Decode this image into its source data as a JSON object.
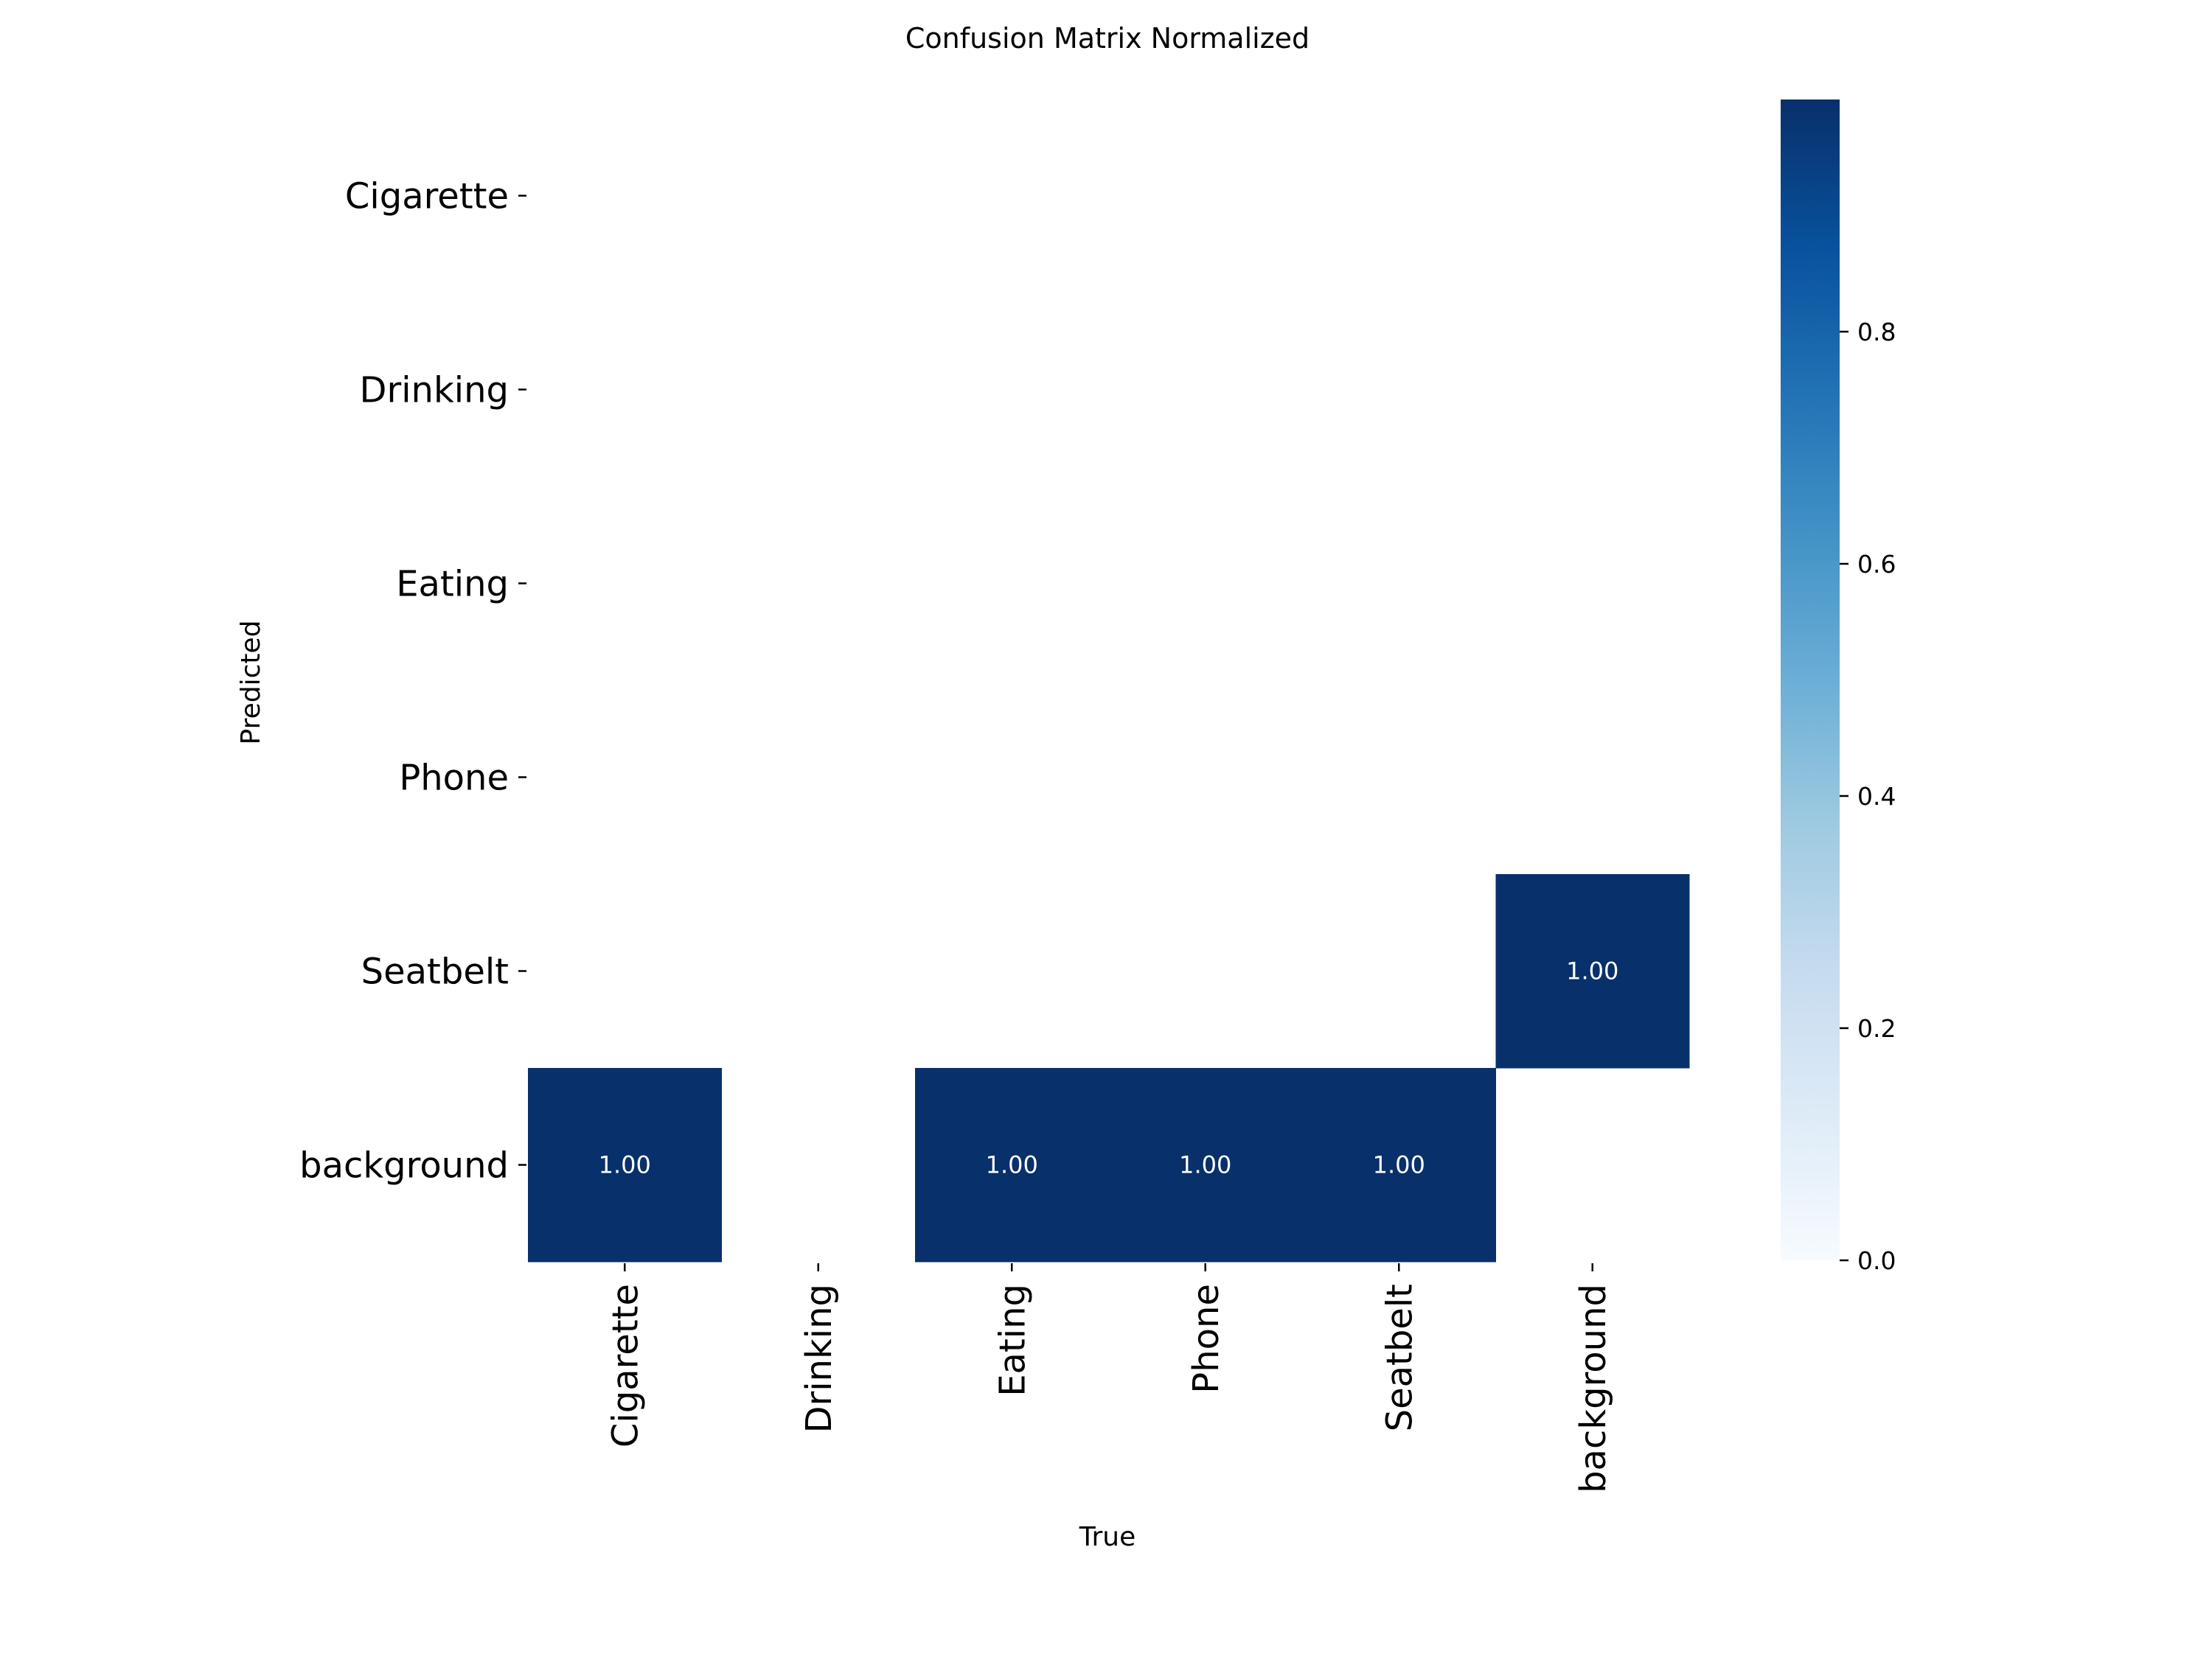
{
  "chart_data": {
    "type": "heatmap",
    "title": "Confusion Matrix Normalized",
    "xlabel": "True",
    "ylabel": "Predicted",
    "x_categories": [
      "Cigarette",
      "Drinking",
      "Eating",
      "Phone",
      "Seatbelt",
      "background"
    ],
    "y_categories": [
      "Cigarette",
      "Drinking",
      "Eating",
      "Phone",
      "Seatbelt",
      "background"
    ],
    "values": [
      [
        null,
        null,
        null,
        null,
        null,
        null
      ],
      [
        null,
        null,
        null,
        null,
        null,
        null
      ],
      [
        null,
        null,
        null,
        null,
        null,
        null
      ],
      [
        null,
        null,
        null,
        null,
        null,
        null
      ],
      [
        null,
        null,
        null,
        null,
        null,
        1.0
      ],
      [
        1.0,
        null,
        1.0,
        1.0,
        1.0,
        null
      ]
    ],
    "value_format": "0.00",
    "colormap": "Blues",
    "color_low": "#f7fbff",
    "color_high": "#08306b",
    "colorbar": {
      "range": [
        0,
        1
      ],
      "ticks": [
        0.0,
        0.2,
        0.4,
        0.6,
        0.8
      ],
      "tick_labels": [
        "0.0",
        "0.2",
        "0.4",
        "0.6",
        "0.8"
      ]
    }
  }
}
